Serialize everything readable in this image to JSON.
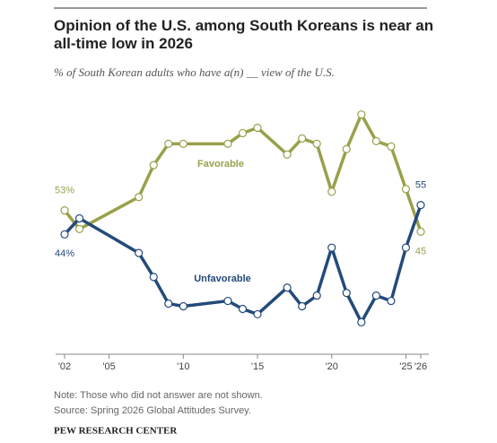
{
  "chart_data": {
    "type": "line",
    "title": "Opinion of the U.S. among South Koreans is near an all-time low in 2026",
    "subtitle": "% of South Korean adults who have a(n) __ view of the U.S.",
    "x": [
      2002,
      2003,
      2007,
      2008,
      2009,
      2010,
      2013,
      2014,
      2015,
      2017,
      2018,
      2019,
      2020,
      2021,
      2022,
      2023,
      2024,
      2025,
      2026
    ],
    "xlim": [
      2002,
      2026
    ],
    "xticks": [
      {
        "value": 2002,
        "label": "'02"
      },
      {
        "value": 2005,
        "label": "'05"
      },
      {
        "value": 2010,
        "label": "'10"
      },
      {
        "value": 2015,
        "label": "'15"
      },
      {
        "value": 2020,
        "label": "'20"
      },
      {
        "value": 2025,
        "label": "'25"
      },
      {
        "value": 2026,
        "label": "'26"
      }
    ],
    "ylim": [
      0,
      100
    ],
    "series": [
      {
        "name": "Favorable",
        "color": "#9aa04a",
        "values": [
          53,
          46,
          58,
          70,
          78,
          78,
          78,
          82,
          84,
          74,
          80,
          78,
          60,
          76,
          89,
          79,
          77,
          61,
          45
        ],
        "value_labels": [
          "53%",
          null,
          null,
          null,
          null,
          null,
          null,
          null,
          null,
          null,
          null,
          null,
          null,
          null,
          null,
          null,
          null,
          null,
          "45"
        ]
      },
      {
        "name": "Unfavorable",
        "color": "#234a7a",
        "values": [
          44,
          50,
          37,
          28,
          18,
          17,
          19,
          16,
          14,
          24,
          17,
          21,
          39,
          22,
          11,
          21,
          19,
          39,
          55
        ],
        "value_labels": [
          "44%",
          null,
          null,
          null,
          null,
          null,
          null,
          null,
          null,
          null,
          null,
          null,
          null,
          null,
          null,
          null,
          null,
          null,
          "55"
        ]
      }
    ],
    "note": "Note: Those who did not answer are not shown.",
    "source": "Source: Spring 2026 Global Attitudes Survey.",
    "footer": "PEW RESEARCH CENTER"
  }
}
